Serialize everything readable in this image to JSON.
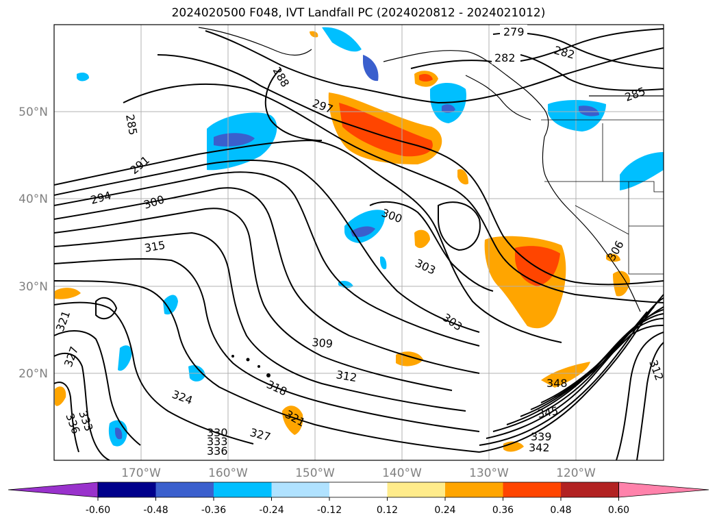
{
  "title": "2024020500 F048, IVT Landfall PC (2024020812 - 2024021012)",
  "map": {
    "lat_labels": [
      "50°N",
      "40°N",
      "30°N",
      "20°N"
    ],
    "lon_labels": [
      "170°W",
      "160°W",
      "150°W",
      "140°W",
      "130°W",
      "120°W"
    ],
    "lat_range": [
      10,
      60
    ],
    "lon_range": [
      -180,
      -110
    ],
    "grid": true
  },
  "contour_labels": [
    "279",
    "282",
    "282",
    "285",
    "285",
    "288",
    "291",
    "294",
    "297",
    "300",
    "300",
    "303",
    "303",
    "306",
    "309",
    "312",
    "312",
    "315",
    "318",
    "321",
    "321",
    "324",
    "327",
    "327",
    "330",
    "333",
    "333",
    "336",
    "336",
    "339",
    "342",
    "345",
    "348",
    "303"
  ],
  "colorbar": {
    "ticks": [
      "-0.60",
      "-0.48",
      "-0.36",
      "-0.24",
      "-0.12",
      "0.12",
      "0.24",
      "0.36",
      "0.48",
      "0.60"
    ],
    "colors": [
      "#9932cc",
      "#00008b",
      "#3a5fcd",
      "#00bfff",
      "#b0e2ff",
      "#ffffff",
      "#ffec8b",
      "#ffa500",
      "#ff4500",
      "#b22222",
      "#ff82ab"
    ]
  }
}
